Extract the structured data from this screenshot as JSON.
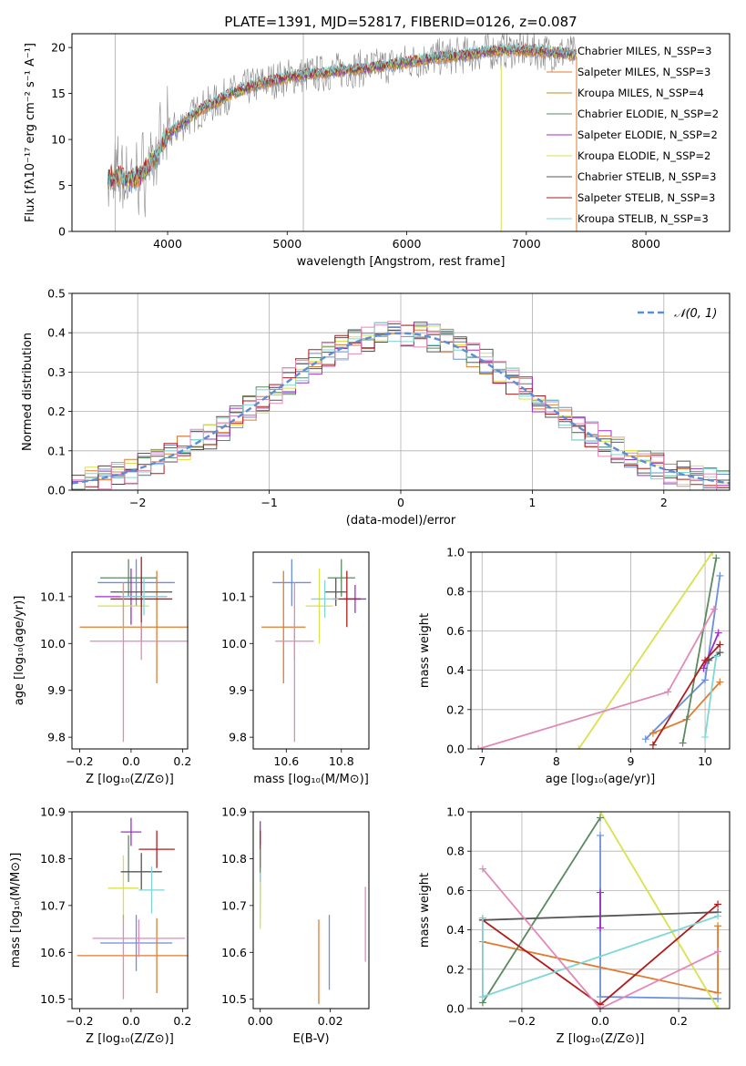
{
  "title": "PLATE=1391, MJD=52817, FIBERID=0126, z=0.087",
  "model_colors": [
    "#6a8fdb",
    "#e07b30",
    "#c98a1e",
    "#5a8a60",
    "#9b30c8",
    "#d9e24c",
    "#555555",
    "#b01c1c",
    "#7fd6d6",
    "#e18ab8",
    "#7fcbd0"
  ],
  "chart_data": [
    {
      "id": "spectrum",
      "type": "line",
      "title": "PLATE=1391, MJD=52817, FIBERID=0126, z=0.087",
      "xlabel": "wavelength [Angstrom, rest frame]",
      "ylabel": "Flux [fλ10⁻¹⁷ erg cm⁻² s⁻¹ A⁻¹]",
      "xlim": [
        3200,
        8700
      ],
      "ylim": [
        0,
        21.5
      ],
      "xticks": [
        "4000",
        "5000",
        "6000",
        "7000",
        "8000"
      ],
      "yticks": [
        "0",
        "5",
        "10",
        "15",
        "20"
      ],
      "legend": "top-right",
      "series": [
        {
          "name": "Chabrier MILES, N_SSP=3",
          "color": "#6a8fdb"
        },
        {
          "name": "Salpeter MILES, N_SSP=3",
          "color": "#e07b30"
        },
        {
          "name": "Kroupa MILES, N_SSP=4",
          "color": "#c98a1e"
        },
        {
          "name": "Chabrier ELODIE, N_SSP=2",
          "color": "#5a8a60"
        },
        {
          "name": "Salpeter ELODIE, N_SSP=2",
          "color": "#9b30c8"
        },
        {
          "name": "Kroupa ELODIE, N_SSP=2",
          "color": "#d9e24c"
        },
        {
          "name": "Chabrier STELIB, N_SSP=3",
          "color": "#555555"
        },
        {
          "name": "Salpeter STELIB, N_SSP=3",
          "color": "#b01c1c"
        },
        {
          "name": "Kroupa STELIB, N_SSP=3",
          "color": "#7fd6d6"
        }
      ],
      "continuum": {
        "x": [
          3500,
          3600,
          3700,
          3800,
          3900,
          4000,
          4100,
          4200,
          4300,
          4400,
          4500,
          4700,
          4900,
          5100,
          5300,
          5500,
          5700,
          5900,
          6100,
          6300,
          6500,
          6700,
          6900,
          7100,
          7300,
          7420
        ],
        "y": [
          5.5,
          6.0,
          5.5,
          6.5,
          8.0,
          10.5,
          11.5,
          12.5,
          13.5,
          14.0,
          14.8,
          15.8,
          16.5,
          17.0,
          17.2,
          17.6,
          17.8,
          18.2,
          18.6,
          19.0,
          19.2,
          19.6,
          19.8,
          19.6,
          19.4,
          19.2
        ]
      }
    },
    {
      "id": "residuals",
      "type": "histogram",
      "xlabel": "(data-model)/error",
      "ylabel": "Normed distribution",
      "xlim": [
        -2.5,
        2.5
      ],
      "ylim": [
        0,
        0.5
      ],
      "xticks": [
        "−2",
        "−1",
        "0",
        "1",
        "2"
      ],
      "yticks": [
        "0.0",
        "0.1",
        "0.2",
        "0.3",
        "0.4",
        "0.5"
      ],
      "grid": true,
      "legend": "top-right",
      "reference_label": "𝒩(0, 1)",
      "reference_color": "#5b8dd9",
      "bin_edges": [
        -2.5,
        -2.4,
        -2.3,
        -2.2,
        -2.1,
        -2.0,
        -1.9,
        -1.8,
        -1.7,
        -1.6,
        -1.5,
        -1.4,
        -1.3,
        -1.2,
        -1.1,
        -1.0,
        -0.9,
        -0.8,
        -0.7,
        -0.6,
        -0.5,
        -0.4,
        -0.3,
        -0.2,
        -0.1,
        0.0,
        0.1,
        0.2,
        0.3,
        0.4,
        0.5,
        0.6,
        0.7,
        0.8,
        0.9,
        1.0,
        1.1,
        1.2,
        1.3,
        1.4,
        1.5,
        1.6,
        1.7,
        1.8,
        1.9,
        2.0,
        2.1,
        2.2,
        2.3,
        2.4,
        2.5
      ]
    },
    {
      "id": "age-vs-Z",
      "type": "scatter",
      "xlabel": "Z [log₁₀(Z/Z⊙)]",
      "ylabel": "age  [log₁₀(age/yr)]",
      "xlim": [
        -0.23,
        0.22
      ],
      "ylim": [
        9.775,
        10.195
      ],
      "xticks": [
        "−0.2",
        "0.0",
        "0.2"
      ],
      "yticks": [
        "9.8",
        "9.9",
        "10.0",
        "10.1"
      ],
      "points": [
        {
          "color": "#6a8fdb",
          "x": 0.02,
          "xerr": 0.15,
          "y": 10.13,
          "yerr": 0.05
        },
        {
          "color": "#e07b30",
          "x": 0.1,
          "xerr": 0.3,
          "y": 10.035,
          "yerr": 0.12
        },
        {
          "color": "#5a8a60",
          "x": -0.01,
          "xerr": 0.11,
          "y": 10.14,
          "yerr": 0.04
        },
        {
          "color": "#9b30c8",
          "x": 0.0,
          "xerr": 0.14,
          "y": 10.1,
          "yerr": 0.06
        },
        {
          "color": "#d9e24c",
          "x": -0.03,
          "xerr": 0.1,
          "y": 10.08,
          "yerr": 0.05
        },
        {
          "color": "#555555",
          "x": 0.04,
          "xerr": 0.12,
          "y": 10.11,
          "yerr": 0.03
        },
        {
          "color": "#b01c1c",
          "x": 0.04,
          "xerr": 0.12,
          "y": 10.095,
          "yerr": 0.09
        },
        {
          "color": "#7fd6d6",
          "x": 0.05,
          "xerr": 0.09,
          "y": 10.1,
          "yerr": 0.04
        },
        {
          "color": "#e18ab8",
          "x": 0.04,
          "xerr": 0.2,
          "y": 10.005,
          "yerr": 0.04
        },
        {
          "color": "#e18ab8",
          "x": -0.03,
          "xerr": 0.0,
          "y": 9.96,
          "yerr": 0.17
        }
      ]
    },
    {
      "id": "age-vs-mass",
      "type": "scatter",
      "xlabel": "mass [log₁₀(M/M⊙)]",
      "xlim": [
        10.48,
        10.9
      ],
      "ylim": [
        9.775,
        10.195
      ],
      "xticks": [
        "10.6",
        "10.8"
      ],
      "yticks": [
        "9.8",
        "9.9",
        "10.0",
        "10.1"
      ],
      "points": [
        {
          "color": "#6a8fdb",
          "x": 10.62,
          "xerr": 0.07,
          "y": 10.13,
          "yerr": 0.05
        },
        {
          "color": "#e07b30",
          "x": 10.59,
          "xerr": 0.08,
          "y": 10.035,
          "yerr": 0.12
        },
        {
          "color": "#5a8a60",
          "x": 10.8,
          "xerr": 0.05,
          "y": 10.14,
          "yerr": 0.04
        },
        {
          "color": "#9b30c8",
          "x": 10.85,
          "xerr": 0.04,
          "y": 10.095,
          "yerr": 0.03
        },
        {
          "color": "#d9e24c",
          "x": 10.72,
          "xerr": 0.05,
          "y": 10.08,
          "yerr": 0.08
        },
        {
          "color": "#555555",
          "x": 10.78,
          "xerr": 0.04,
          "y": 10.11,
          "yerr": 0.03
        },
        {
          "color": "#b01c1c",
          "x": 10.82,
          "xerr": 0.05,
          "y": 10.095,
          "yerr": 0.06
        },
        {
          "color": "#7fd6d6",
          "x": 10.74,
          "xerr": 0.05,
          "y": 10.095,
          "yerr": 0.04
        },
        {
          "color": "#e18ab8",
          "x": 10.63,
          "xerr": 0.07,
          "y": 10.005,
          "yerr": 0.04
        },
        {
          "color": "#e18ab8",
          "x": 10.63,
          "xerr": 0.0,
          "y": 9.96,
          "yerr": 0.17
        }
      ]
    },
    {
      "id": "weight-vs-age",
      "type": "line",
      "xlabel": "age  [log₁₀(age/yr)]",
      "ylabel": "mass weight",
      "xlim": [
        6.85,
        10.33
      ],
      "ylim": [
        0,
        1
      ],
      "xticks": [
        "7",
        "8",
        "9",
        "10"
      ],
      "yticks": [
        "0.0",
        "0.2",
        "0.4",
        "0.6",
        "0.8",
        "1.0"
      ],
      "grid": true,
      "series": [
        {
          "color": "#6a8fdb",
          "x": [
            9.2,
            10.0,
            10.2
          ],
          "y": [
            0.05,
            0.35,
            0.88
          ]
        },
        {
          "color": "#e07b30",
          "x": [
            9.3,
            9.75,
            10.2
          ],
          "y": [
            0.08,
            0.15,
            0.34
          ]
        },
        {
          "color": "#d9e24c",
          "x": [
            8.3,
            10.1
          ],
          "y": [
            0.0,
            1.0
          ]
        },
        {
          "color": "#5a8a60",
          "x": [
            9.7,
            10.15
          ],
          "y": [
            0.03,
            0.97
          ]
        },
        {
          "color": "#9b30c8",
          "x": [
            9.98,
            10.18
          ],
          "y": [
            0.41,
            0.59
          ]
        },
        {
          "color": "#555555",
          "x": [
            10.05,
            10.2
          ],
          "y": [
            0.45,
            0.49
          ]
        },
        {
          "color": "#b01c1c",
          "x": [
            9.3,
            10.0,
            10.2
          ],
          "y": [
            0.02,
            0.45,
            0.53
          ]
        },
        {
          "color": "#7fd6d6",
          "x": [
            10.0,
            10.15
          ],
          "y": [
            0.06,
            0.47
          ]
        },
        {
          "color": "#e18ab8",
          "x": [
            6.95,
            9.5,
            10.12
          ],
          "y": [
            0.0,
            0.29,
            0.71
          ]
        }
      ]
    },
    {
      "id": "mass-vs-Z",
      "type": "scatter",
      "xlabel": "Z [log₁₀(Z/Z⊙)]",
      "ylabel": "mass [log₁₀(M/M⊙)]",
      "xlim": [
        -0.23,
        0.22
      ],
      "ylim": [
        10.48,
        10.9
      ],
      "xticks": [
        "−0.2",
        "0.0",
        "0.2"
      ],
      "yticks": [
        "10.5",
        "10.6",
        "10.7",
        "10.8",
        "10.9"
      ],
      "points": [
        {
          "color": "#6a8fdb",
          "x": 0.02,
          "xerr": 0.14,
          "y": 10.62,
          "yerr": 0.06
        },
        {
          "color": "#e07b30",
          "x": 0.1,
          "xerr": 0.31,
          "y": 10.593,
          "yerr": 0.08
        },
        {
          "color": "#5a8a60",
          "x": -0.01,
          "xerr": 0.0,
          "y": 10.8,
          "yerr": 0.05
        },
        {
          "color": "#9b30c8",
          "x": 0.0,
          "xerr": 0.04,
          "y": 10.857,
          "yerr": 0.03
        },
        {
          "color": "#d9e24c",
          "x": -0.03,
          "xerr": 0.06,
          "y": 10.737,
          "yerr": 0.07
        },
        {
          "color": "#555555",
          "x": 0.04,
          "xerr": 0.08,
          "y": 10.772,
          "yerr": 0.04
        },
        {
          "color": "#b01c1c",
          "x": 0.1,
          "xerr": 0.07,
          "y": 10.82,
          "yerr": 0.04
        },
        {
          "color": "#7fd6d6",
          "x": 0.08,
          "xerr": 0.05,
          "y": 10.733,
          "yerr": 0.05
        },
        {
          "color": "#e18ab8",
          "x": 0.03,
          "xerr": 0.18,
          "y": 10.63,
          "yerr": 0.04
        },
        {
          "color": "#e18ab8",
          "x": -0.03,
          "xerr": 0.0,
          "y": 10.59,
          "yerr": 0.09
        }
      ]
    },
    {
      "id": "mass-vs-ebv",
      "type": "scatter",
      "xlabel": "E(B-V)",
      "xlim": [
        -0.002,
        0.031
      ],
      "ylim": [
        10.48,
        10.9
      ],
      "xticks": [
        "0.00",
        "0.02"
      ],
      "yticks": [
        "10.5",
        "10.6",
        "10.7",
        "10.8",
        "10.9"
      ],
      "points": [
        {
          "color": "#9b30c8",
          "x": 0.0,
          "y": 10.855,
          "yerr": 0.025
        },
        {
          "color": "#b01c1c",
          "x": 0.0,
          "y": 10.82,
          "yerr": 0.04
        },
        {
          "color": "#5a8a60",
          "x": 0.0,
          "y": 10.76,
          "yerr": 0.06
        },
        {
          "color": "#7fd6d6",
          "x": 0.0,
          "y": 10.72,
          "yerr": 0.05
        },
        {
          "color": "#d9e24c",
          "x": 0.0,
          "y": 10.7,
          "yerr": 0.05
        },
        {
          "color": "#e07b30",
          "x": 0.0167,
          "y": 10.58,
          "yerr": 0.09
        },
        {
          "color": "#6a8fdb",
          "x": 0.0197,
          "y": 10.6,
          "yerr": 0.08
        },
        {
          "color": "#e18ab8",
          "x": 0.03,
          "y": 10.66,
          "yerr": 0.08
        }
      ]
    },
    {
      "id": "weight-vs-Z",
      "type": "line",
      "xlabel": "Z [log₁₀(Z/Z⊙)]",
      "ylabel": "mass weight",
      "xlim": [
        -0.33,
        0.33
      ],
      "ylim": [
        0,
        1
      ],
      "xticks": [
        "−0.2",
        "0.0",
        "0.2"
      ],
      "yticks": [
        "0.0",
        "0.2",
        "0.4",
        "0.6",
        "0.8",
        "1.0"
      ],
      "grid": true,
      "series": [
        {
          "color": "#6a8fdb",
          "x": [
            0.0,
            0.0,
            0.3
          ],
          "y": [
            0.88,
            0.06,
            0.05
          ]
        },
        {
          "color": "#e07b30",
          "x": [
            -0.3,
            0.3,
            0.3
          ],
          "y": [
            0.34,
            0.08,
            0.42
          ]
        },
        {
          "color": "#d9e24c",
          "x": [
            0.0,
            0.3
          ],
          "y": [
            1.0,
            0.0
          ]
        },
        {
          "color": "#5a8a60",
          "x": [
            -0.3,
            0.0
          ],
          "y": [
            0.03,
            0.97
          ]
        },
        {
          "color": "#9b30c8",
          "x": [
            0.0,
            0.0
          ],
          "y": [
            0.59,
            0.41
          ]
        },
        {
          "color": "#555555",
          "x": [
            -0.3,
            0.3
          ],
          "y": [
            0.45,
            0.49
          ]
        },
        {
          "color": "#b01c1c",
          "x": [
            -0.3,
            0.0,
            0.3
          ],
          "y": [
            0.45,
            0.02,
            0.53
          ]
        },
        {
          "color": "#7fd6d6",
          "x": [
            -0.3,
            0.3
          ],
          "y": [
            0.06,
            0.47
          ]
        },
        {
          "color": "#e18ab8",
          "x": [
            -0.3,
            0.0,
            0.3
          ],
          "y": [
            0.71,
            0.0,
            0.29
          ]
        },
        {
          "color": "#7fcbd0",
          "x": [
            -0.3,
            -0.3
          ],
          "y": [
            0.06,
            0.46
          ]
        }
      ]
    }
  ]
}
